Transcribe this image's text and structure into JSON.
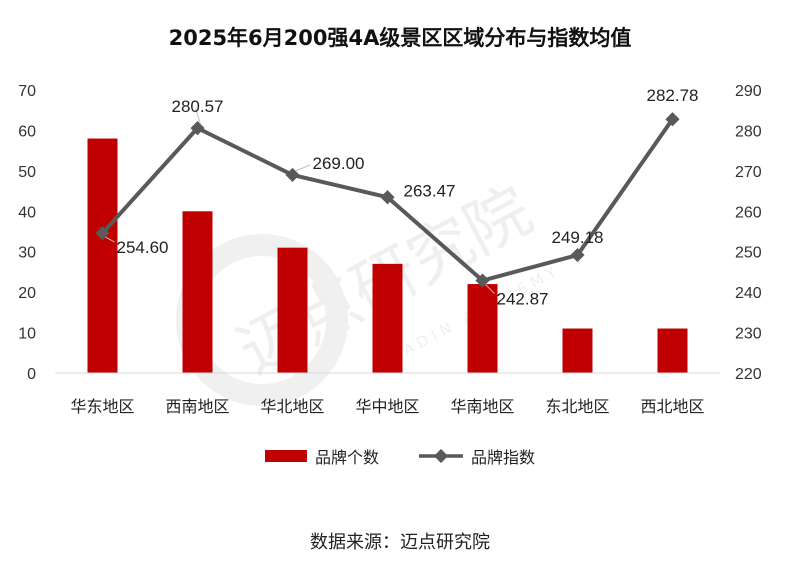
{
  "title": "2025年6月200强4A级景区区域分布与指数均值",
  "source": "数据来源：迈点研究院",
  "watermark": {
    "cn": "迈点研究院",
    "en": "MEADIN ACADEMY"
  },
  "colors": {
    "bar": "#c00000",
    "line": "#595959",
    "grid": "#d9d9d9"
  },
  "chart_data": {
    "type": "bar",
    "categories": [
      "华东地区",
      "西南地区",
      "华北地区",
      "华中地区",
      "华南地区",
      "东北地区",
      "西北地区"
    ],
    "series": [
      {
        "name": "品牌个数",
        "type": "bar",
        "axis": "left",
        "values": [
          58,
          40,
          31,
          27,
          22,
          11,
          11
        ]
      },
      {
        "name": "品牌指数",
        "type": "line",
        "axis": "right",
        "values": [
          254.6,
          280.57,
          269.0,
          263.47,
          242.87,
          249.18,
          282.78
        ],
        "labels": [
          "254.60",
          "280.57",
          "269.00",
          "263.47",
          "242.87",
          "249.18",
          "282.78"
        ]
      }
    ],
    "y_left": {
      "min": 0,
      "max": 70,
      "ticks": [
        "0",
        "10",
        "20",
        "30",
        "40",
        "50",
        "60",
        "70"
      ]
    },
    "y_right": {
      "min": 220,
      "max": 290,
      "ticks": [
        "220",
        "230",
        "240",
        "250",
        "260",
        "270",
        "280",
        "290"
      ]
    },
    "grid": false,
    "legend_position": "bottom"
  }
}
